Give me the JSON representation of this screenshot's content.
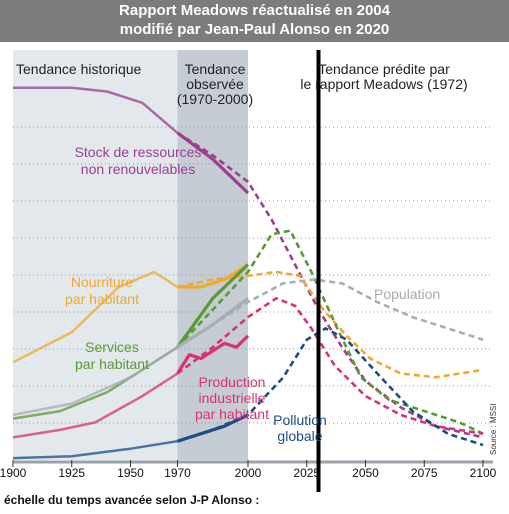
{
  "header": {
    "line1": "Rapport Meadows réactualisé en 2004",
    "line2": "modifié par Jean-Paul Alonso en 2020"
  },
  "colors": {
    "historical_band": "#e3e8ec",
    "observed_band": "#c6ccd3",
    "title_band": "#7c7c7c",
    "resources": "#9b3f8f",
    "food": "#f0a92f",
    "services": "#5a9a35",
    "population": "#a8acb3",
    "industrial": "#d43474",
    "pollution": "#1e4d82"
  },
  "chart_data": {
    "type": "line",
    "region_labels": {
      "historical": "Tendance historique",
      "observed_line1": "Tendance",
      "observed_line2": "observée",
      "observed_line3": "(1970-2000)",
      "predicted_line1": "Tendance prédite par",
      "predicted_line2": "le rapport Meadows (1972)"
    },
    "regions": {
      "historical": [
        1900,
        1970
      ],
      "observed": [
        1970,
        2000
      ]
    },
    "xlim": [
      1900,
      2100
    ],
    "x_ticks": [
      "1900",
      "1925",
      "1950",
      "1970",
      "2000",
      "2025",
      "2050",
      "2075",
      "2100"
    ],
    "x_tick_values": [
      1900,
      1925,
      1950,
      1970,
      2000,
      2025,
      2050,
      2075,
      2100
    ],
    "alonso_ticks": [
      "2020",
      "2040",
      "2065",
      "2090"
    ],
    "alonso_tick_values": [
      2025,
      2050,
      2075,
      2100
    ],
    "alonso_marker_year": 2030,
    "footnote": "échelle du temps avancée selon J-P Alonso :",
    "source": "Source : MSSI",
    "ylim": [
      0,
      100
    ],
    "series": [
      {
        "key": "resources",
        "name": "Stock de ressources non renouvelables",
        "label_lines": [
          "Stock de ressources",
          "non renouvelables"
        ],
        "solid": [
          [
            1900,
            99
          ],
          [
            1925,
            99
          ],
          [
            1940,
            98
          ],
          [
            1955,
            95
          ],
          [
            1970,
            87
          ]
        ],
        "observed": [
          [
            1970,
            87
          ],
          [
            1985,
            80
          ],
          [
            2000,
            71
          ]
        ],
        "predicted": [
          [
            1970,
            87
          ],
          [
            1985,
            81
          ],
          [
            2000,
            74
          ],
          [
            2010,
            64
          ],
          [
            2020,
            52
          ],
          [
            2030,
            40
          ],
          [
            2040,
            30
          ],
          [
            2050,
            21
          ],
          [
            2065,
            14
          ],
          [
            2080,
            9
          ],
          [
            2100,
            6
          ]
        ]
      },
      {
        "key": "food",
        "name": "Nourriture par habitant",
        "label_lines": [
          "Nourriture",
          "par habitant"
        ],
        "solid": [
          [
            1900,
            26
          ],
          [
            1925,
            34
          ],
          [
            1945,
            46
          ],
          [
            1960,
            50
          ],
          [
            1970,
            46
          ]
        ],
        "observed": [
          [
            1970,
            46
          ],
          [
            1980,
            46
          ],
          [
            1990,
            48
          ],
          [
            2000,
            52
          ]
        ],
        "predicted": [
          [
            1970,
            46
          ],
          [
            1985,
            48
          ],
          [
            2000,
            49
          ],
          [
            2012,
            50
          ],
          [
            2022,
            49
          ],
          [
            2032,
            40
          ],
          [
            2042,
            33
          ],
          [
            2052,
            27
          ],
          [
            2065,
            23
          ],
          [
            2080,
            22
          ],
          [
            2100,
            24
          ]
        ]
      },
      {
        "key": "services",
        "name": "Services par habitant",
        "label_lines": [
          "Services",
          "par habitant"
        ],
        "solid": [
          [
            1900,
            11
          ],
          [
            1920,
            13
          ],
          [
            1940,
            18
          ],
          [
            1955,
            24
          ],
          [
            1970,
            30
          ]
        ],
        "observed": [
          [
            1970,
            30
          ],
          [
            1985,
            43
          ],
          [
            2000,
            52
          ]
        ],
        "predicted": [
          [
            1970,
            30
          ],
          [
            1985,
            40
          ],
          [
            2000,
            50
          ],
          [
            2010,
            60
          ],
          [
            2018,
            61
          ],
          [
            2027,
            50
          ],
          [
            2038,
            35
          ],
          [
            2048,
            22
          ],
          [
            2060,
            16
          ],
          [
            2075,
            13
          ],
          [
            2090,
            10
          ],
          [
            2100,
            7
          ]
        ]
      },
      {
        "key": "population",
        "name": "Population",
        "label_lines": [
          "Population"
        ],
        "solid": [
          [
            1900,
            12
          ],
          [
            1925,
            15
          ],
          [
            1950,
            22
          ],
          [
            1970,
            30
          ]
        ],
        "observed": [
          [
            1970,
            30
          ],
          [
            1985,
            36
          ],
          [
            2000,
            43
          ]
        ],
        "predicted": [
          [
            1970,
            30
          ],
          [
            1985,
            36
          ],
          [
            2000,
            42
          ],
          [
            2015,
            47
          ],
          [
            2028,
            48
          ],
          [
            2040,
            47
          ],
          [
            2055,
            42
          ],
          [
            2070,
            38
          ],
          [
            2085,
            35
          ],
          [
            2100,
            32
          ]
        ]
      },
      {
        "key": "industrial",
        "name": "Production industrielle par habitant",
        "label_lines": [
          "Production",
          "industrielle",
          "par habitant"
        ],
        "solid": [
          [
            1900,
            6
          ],
          [
            1920,
            8
          ],
          [
            1935,
            10
          ],
          [
            1955,
            17
          ],
          [
            1970,
            23
          ]
        ],
        "observed": [
          [
            1970,
            23
          ],
          [
            1975,
            28
          ],
          [
            1980,
            27
          ],
          [
            1990,
            31
          ],
          [
            1995,
            30
          ],
          [
            2000,
            33
          ]
        ],
        "predicted": [
          [
            1970,
            23
          ],
          [
            1985,
            30
          ],
          [
            2000,
            38
          ],
          [
            2012,
            43
          ],
          [
            2020,
            41
          ],
          [
            2027,
            35
          ],
          [
            2037,
            25
          ],
          [
            2050,
            17
          ],
          [
            2065,
            12
          ],
          [
            2080,
            9
          ],
          [
            2100,
            7
          ]
        ]
      },
      {
        "key": "pollution",
        "name": "Pollution globale",
        "label_lines": [
          "Pollution",
          "globale"
        ],
        "solid": [
          [
            1900,
            0.5
          ],
          [
            1925,
            1
          ],
          [
            1950,
            3
          ],
          [
            1970,
            5
          ]
        ],
        "observed": [
          [
            1970,
            5
          ],
          [
            1980,
            7
          ],
          [
            1990,
            9
          ],
          [
            2000,
            12
          ]
        ],
        "predicted": [
          [
            1970,
            5
          ],
          [
            1985,
            8
          ],
          [
            2000,
            12
          ],
          [
            2015,
            22
          ],
          [
            2025,
            32
          ],
          [
            2033,
            35
          ],
          [
            2042,
            32
          ],
          [
            2055,
            23
          ],
          [
            2070,
            13
          ],
          [
            2085,
            7
          ],
          [
            2100,
            4
          ]
        ]
      }
    ]
  }
}
